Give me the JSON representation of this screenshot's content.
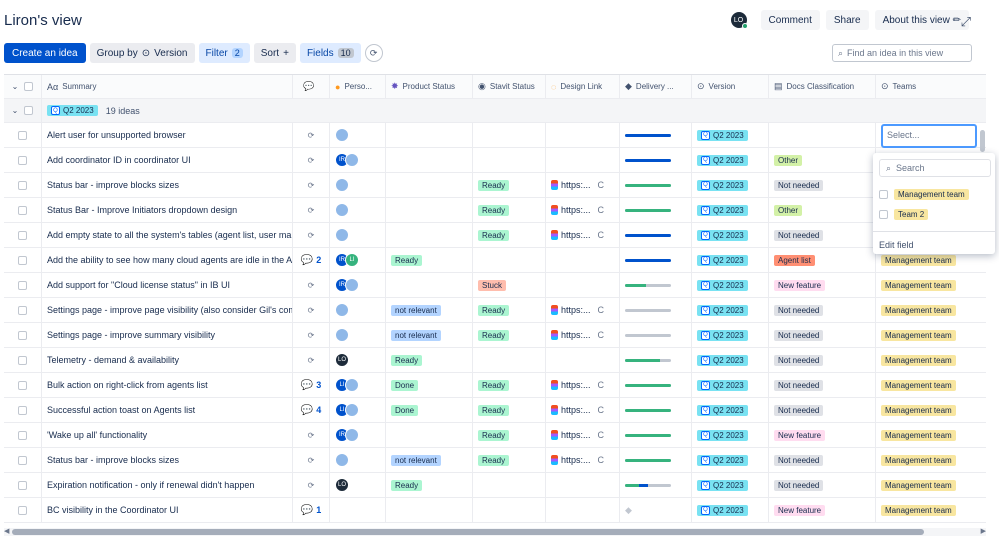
{
  "header": {
    "title": "Liron's view",
    "user_initials": "LO",
    "comment": "Comment",
    "share": "Share",
    "about": "About this view ✏"
  },
  "toolbar": {
    "create": "Create an idea",
    "group_by": "Group by",
    "group_value": "Version",
    "filter": "Filter",
    "filter_count": "2",
    "sort": "Sort",
    "sort_plus": "+",
    "fields": "Fields",
    "fields_count": "10",
    "find_placeholder": "Find an idea in this view"
  },
  "columns": [
    "Summary",
    "",
    "Perso...",
    "Product Status",
    "Stavit Status",
    "Design Link",
    "Delivery ...",
    "Version",
    "Docs Classification",
    "Teams"
  ],
  "group": {
    "name": "Q2 2023",
    "count": "19 ideas"
  },
  "colors": {
    "Ready": "#abf5d1",
    "Stuck": "#ffbdad",
    "Done": "#abf5d1",
    "not relevant": "#b3d4ff",
    "Other": "#d3f1a7",
    "Not needed": "#dfe1e6",
    "Agent list": "#ff8f73",
    "New feature": "#ffdcf0",
    "Management team": "#f8e6a0"
  },
  "rows": [
    {
      "summary": "Alert user for unsupported browser",
      "comments": "",
      "people": [
        {
          "i": "",
          "c": "#8fb8e8"
        }
      ],
      "product": "",
      "stavit": "",
      "link": "",
      "delivery": [
        {
          "w": 100,
          "c": "#0052cc"
        }
      ],
      "version": "Q2 2023",
      "docs": "",
      "teams": ""
    },
    {
      "summary": "Add coordinator ID in coordinator UI",
      "comments": "",
      "people": [
        {
          "i": "IR",
          "c": "#0052cc"
        },
        {
          "i": "",
          "c": "#8fb8e8"
        }
      ],
      "product": "",
      "stavit": "",
      "link": "",
      "delivery": [
        {
          "w": 100,
          "c": "#0052cc"
        }
      ],
      "version": "Q2 2023",
      "docs": "Other",
      "teams": ""
    },
    {
      "summary": "Status bar - improve blocks sizes",
      "comments": "",
      "people": [
        {
          "i": "",
          "c": "#8fb8e8"
        }
      ],
      "product": "",
      "stavit": "Ready",
      "link": "https:...",
      "delivery": [
        {
          "w": 100,
          "c": "#36b37e"
        }
      ],
      "version": "Q2 2023",
      "docs": "Not needed",
      "teams": ""
    },
    {
      "summary": "Status Bar - Improve Initiators dropdown design",
      "comments": "",
      "people": [
        {
          "i": "",
          "c": "#8fb8e8"
        }
      ],
      "product": "",
      "stavit": "Ready",
      "link": "https:...",
      "delivery": [
        {
          "w": 100,
          "c": "#36b37e"
        }
      ],
      "version": "Q2 2023",
      "docs": "Other",
      "teams": ""
    },
    {
      "summary": "Add empty state to all the system's tables (agent list, user mana...",
      "comments": "",
      "people": [
        {
          "i": "",
          "c": "#8fb8e8"
        }
      ],
      "product": "",
      "stavit": "Ready",
      "link": "https:...",
      "delivery": [
        {
          "w": 100,
          "c": "#0052cc"
        }
      ],
      "version": "Q2 2023",
      "docs": "Not needed",
      "teams": ""
    },
    {
      "summary": "Add the ability to see how many cloud agents are idle in the Ag...",
      "comments": "2",
      "people": [
        {
          "i": "IR",
          "c": "#0052cc"
        },
        {
          "i": "LI",
          "c": "#36b37e"
        }
      ],
      "product": "Ready",
      "stavit": "",
      "link": "",
      "delivery": [
        {
          "w": 100,
          "c": "#0052cc"
        }
      ],
      "version": "Q2 2023",
      "docs": "Agent list",
      "teams": "Management team"
    },
    {
      "summary": "Add support for \"Cloud license status\" in IB UI",
      "comments": "",
      "people": [
        {
          "i": "IR",
          "c": "#0052cc"
        },
        {
          "i": "",
          "c": "#8fb8e8"
        }
      ],
      "product": "",
      "stavit": "Stuck",
      "link": "",
      "delivery": [
        {
          "w": 45,
          "c": "#36b37e"
        }
      ],
      "version": "Q2 2023",
      "docs": "New feature",
      "teams": "Management team"
    },
    {
      "summary": "Settings page - improve page visibility (also consider Gil's com...",
      "comments": "",
      "people": [
        {
          "i": "",
          "c": "#8fb8e8"
        }
      ],
      "product": "not relevant",
      "stavit": "Ready",
      "link": "https:...",
      "delivery": [],
      "version": "Q2 2023",
      "docs": "Not needed",
      "teams": "Management team"
    },
    {
      "summary": "Settings page - improve summary visibility",
      "comments": "",
      "people": [
        {
          "i": "",
          "c": "#8fb8e8"
        }
      ],
      "product": "not relevant",
      "stavit": "Ready",
      "link": "https:...",
      "delivery": [],
      "version": "Q2 2023",
      "docs": "Not needed",
      "teams": "Management team"
    },
    {
      "summary": "Telemetry - demand & availability",
      "comments": "",
      "people": [
        {
          "i": "LO",
          "c": "#1d2b3a"
        }
      ],
      "product": "Ready",
      "stavit": "",
      "link": "",
      "delivery": [
        {
          "w": 75,
          "c": "#36b37e"
        }
      ],
      "version": "Q2 2023",
      "docs": "Not needed",
      "teams": "Management team"
    },
    {
      "summary": "Bulk action on right-click from agents list",
      "comments": "3",
      "people": [
        {
          "i": "LI",
          "c": "#0052cc"
        },
        {
          "i": "",
          "c": "#8fb8e8"
        }
      ],
      "product": "Done",
      "stavit": "Ready",
      "link": "https:...",
      "delivery": [
        {
          "w": 100,
          "c": "#36b37e"
        }
      ],
      "version": "Q2 2023",
      "docs": "Not needed",
      "teams": "Management team"
    },
    {
      "summary": "Successful action toast on Agents list",
      "comments": "4",
      "people": [
        {
          "i": "LI",
          "c": "#0052cc"
        },
        {
          "i": "",
          "c": "#8fb8e8"
        }
      ],
      "product": "Done",
      "stavit": "Ready",
      "link": "https:...",
      "delivery": [
        {
          "w": 100,
          "c": "#36b37e"
        }
      ],
      "version": "Q2 2023",
      "docs": "Not needed",
      "teams": "Management team"
    },
    {
      "summary": "'Wake up all' functionality",
      "comments": "",
      "people": [
        {
          "i": "IR",
          "c": "#0052cc"
        },
        {
          "i": "",
          "c": "#8fb8e8"
        }
      ],
      "product": "",
      "stavit": "Ready",
      "link": "https:...",
      "delivery": [
        {
          "w": 100,
          "c": "#36b37e"
        }
      ],
      "version": "Q2 2023",
      "docs": "New feature",
      "teams": "Management team"
    },
    {
      "summary": "Status bar - improve blocks sizes",
      "comments": "",
      "people": [
        {
          "i": "",
          "c": "#8fb8e8"
        }
      ],
      "product": "not relevant",
      "stavit": "Ready",
      "link": "https:...",
      "delivery": [
        {
          "w": 100,
          "c": "#36b37e"
        }
      ],
      "version": "Q2 2023",
      "docs": "Not needed",
      "teams": "Management team"
    },
    {
      "summary": "Expiration notification - only if renewal didn't happen",
      "comments": "",
      "people": [
        {
          "i": "LO",
          "c": "#1d2b3a"
        }
      ],
      "product": "Ready",
      "stavit": "",
      "link": "",
      "delivery": [
        {
          "w": 30,
          "c": "#36b37e"
        },
        {
          "w": 20,
          "c": "#0052cc"
        }
      ],
      "version": "Q2 2023",
      "docs": "Not needed",
      "teams": "Management team"
    },
    {
      "summary": "BC visibility in the Coordinator UI",
      "comments": "1",
      "people": [],
      "product": "",
      "stavit": "",
      "link": "",
      "delivery": [],
      "version": "Q2 2023",
      "docs": "New feature",
      "teams": "Management team"
    }
  ],
  "dropdown": {
    "placeholder": "Select...",
    "search": "Search",
    "options": [
      "Management team",
      "Team 2"
    ],
    "edit": "Edit field"
  }
}
